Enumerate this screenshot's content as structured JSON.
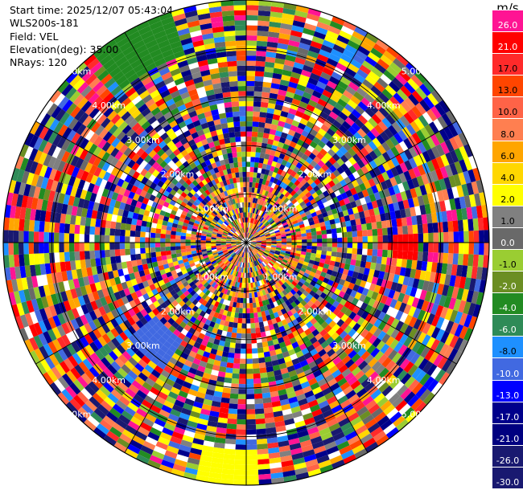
{
  "info": {
    "start_time": "Start time: 2025/12/07 05:43:04",
    "instrument": "WLS200s-181",
    "field": "Field: VEL",
    "elevation": "Elevation(deg): 35.00",
    "nrays": "NRays: 120"
  },
  "chart_data": {
    "type": "heatmap",
    "projection": "polar-ppi",
    "title": "",
    "field": "VEL",
    "unit": "m/s",
    "nrays": 120,
    "elevation_deg": 35.0,
    "range_rings": [
      {
        "label": "1.00km"
      },
      {
        "label": "2.00km"
      },
      {
        "label": "3.00km"
      },
      {
        "label": "4.00km"
      },
      {
        "label": "5.00km"
      }
    ],
    "ring_label_directions": [
      "northwest",
      "northeast",
      "southwest",
      "southeast"
    ],
    "radial_lines": "every 30 degrees",
    "colorbar": {
      "unit_label": "m/s",
      "bins": [
        {
          "label": "26.0",
          "color": "#ff1493"
        },
        {
          "label": "21.0",
          "color": "#ff0000"
        },
        {
          "label": "17.0",
          "color": "#ff2a2a"
        },
        {
          "label": "13.0",
          "color": "#ff4500"
        },
        {
          "label": "10.0",
          "color": "#ff6347"
        },
        {
          "label": "8.0",
          "color": "#ff7f50"
        },
        {
          "label": "6.0",
          "color": "#ffa500"
        },
        {
          "label": "4.0",
          "color": "#ffd700"
        },
        {
          "label": "2.0",
          "color": "#ffff00"
        },
        {
          "label": "1.0",
          "color": "#808080"
        },
        {
          "label": "0.0",
          "color": "#696969"
        },
        {
          "label": "-1.0",
          "color": "#9acd32"
        },
        {
          "label": "-2.0",
          "color": "#6b8e23"
        },
        {
          "label": "-4.0",
          "color": "#228b22"
        },
        {
          "label": "-6.0",
          "color": "#2e8b57"
        },
        {
          "label": "-8.0",
          "color": "#1e90ff"
        },
        {
          "label": "-10.0",
          "color": "#4169e1"
        },
        {
          "label": "-13.0",
          "color": "#0000ff"
        },
        {
          "label": "-17.0",
          "color": "#00008b"
        },
        {
          "label": "-21.0",
          "color": "#000080"
        },
        {
          "label": "-26.0",
          "color": "#191970"
        },
        {
          "label": "-30.0",
          "color": "#191970"
        }
      ]
    }
  }
}
